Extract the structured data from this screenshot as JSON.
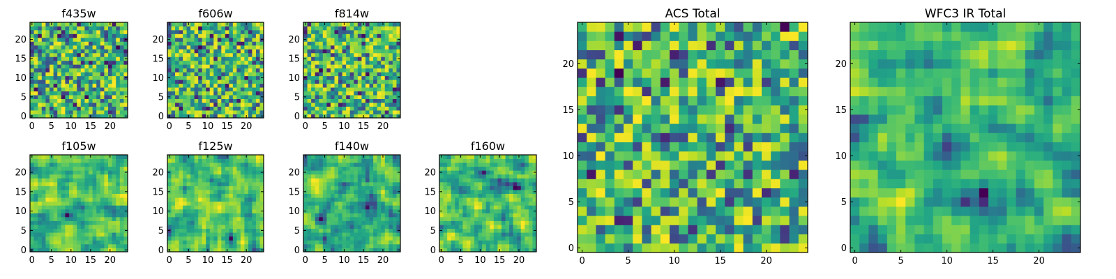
{
  "chart_data": [
    {
      "type": "heatmap",
      "title": "f435w",
      "xticks": [
        "0",
        "5",
        "10",
        "15",
        "20"
      ],
      "yticks": [
        "0",
        "5",
        "10",
        "15",
        "20"
      ],
      "xlim": [
        -0.5,
        24.5
      ],
      "ylim": [
        -0.5,
        24.5
      ],
      "grid_size": 25,
      "colormap": "viridis",
      "values": []
    },
    {
      "type": "heatmap",
      "title": "f606w",
      "xticks": [
        "0",
        "5",
        "10",
        "15",
        "20"
      ],
      "yticks": [
        "0",
        "5",
        "10",
        "15",
        "20"
      ],
      "xlim": [
        -0.5,
        24.5
      ],
      "ylim": [
        -0.5,
        24.5
      ],
      "grid_size": 25,
      "colormap": "viridis",
      "values": []
    },
    {
      "type": "heatmap",
      "title": "f814w",
      "xticks": [
        "0",
        "5",
        "10",
        "15",
        "20"
      ],
      "yticks": [
        "0",
        "5",
        "10",
        "15",
        "20"
      ],
      "xlim": [
        -0.5,
        24.5
      ],
      "ylim": [
        -0.5,
        24.5
      ],
      "grid_size": 25,
      "colormap": "viridis",
      "values": []
    },
    {
      "type": "heatmap",
      "title": "f105w",
      "xticks": [
        "0",
        "5",
        "10",
        "15",
        "20"
      ],
      "yticks": [
        "0",
        "5",
        "10",
        "15",
        "20"
      ],
      "xlim": [
        -0.5,
        24.5
      ],
      "ylim": [
        -0.5,
        24.5
      ],
      "grid_size": 25,
      "colormap": "viridis",
      "values": []
    },
    {
      "type": "heatmap",
      "title": "f125w",
      "xticks": [
        "0",
        "5",
        "10",
        "15",
        "20"
      ],
      "yticks": [
        "0",
        "5",
        "10",
        "15",
        "20"
      ],
      "xlim": [
        -0.5,
        24.5
      ],
      "ylim": [
        -0.5,
        24.5
      ],
      "grid_size": 25,
      "colormap": "viridis",
      "values": []
    },
    {
      "type": "heatmap",
      "title": "f140w",
      "xticks": [
        "0",
        "5",
        "10",
        "15",
        "20"
      ],
      "yticks": [
        "0",
        "5",
        "10",
        "15",
        "20"
      ],
      "xlim": [
        -0.5,
        24.5
      ],
      "ylim": [
        -0.5,
        24.5
      ],
      "grid_size": 25,
      "colormap": "viridis",
      "values": []
    },
    {
      "type": "heatmap",
      "title": "f160w",
      "xticks": [
        "0",
        "5",
        "10",
        "15",
        "20"
      ],
      "yticks": [
        "0",
        "5",
        "10",
        "15",
        "20"
      ],
      "xlim": [
        -0.5,
        24.5
      ],
      "ylim": [
        -0.5,
        24.5
      ],
      "grid_size": 25,
      "colormap": "viridis",
      "values": []
    },
    {
      "type": "heatmap",
      "title": "ACS Total",
      "xticks": [
        "0",
        "5",
        "10",
        "15",
        "20"
      ],
      "yticks": [
        "0",
        "5",
        "10",
        "15",
        "20"
      ],
      "xlim": [
        -0.5,
        24.5
      ],
      "ylim": [
        -0.5,
        24.5
      ],
      "grid_size": 25,
      "colormap": "viridis",
      "values": []
    },
    {
      "type": "heatmap",
      "title": "WFC3 IR Total",
      "xticks": [
        "0",
        "5",
        "10",
        "15",
        "20"
      ],
      "yticks": [
        "0",
        "5",
        "10",
        "15",
        "20"
      ],
      "xlim": [
        -0.5,
        24.5
      ],
      "ylim": [
        -0.5,
        24.5
      ],
      "grid_size": 25,
      "colormap": "viridis",
      "values": []
    }
  ],
  "colors": {
    "viridis_low": "#440154",
    "viridis_mid": "#21908d",
    "viridis_high": "#fde725",
    "axes": "#000000",
    "background": "#ffffff"
  }
}
